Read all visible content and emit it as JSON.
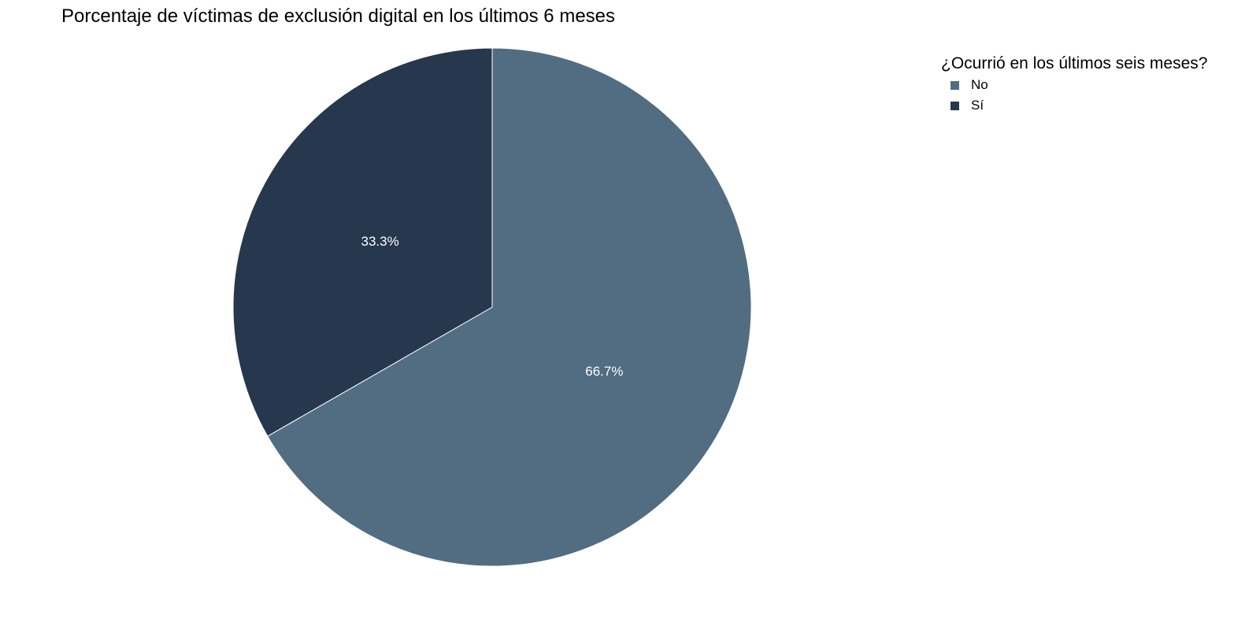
{
  "chart_data": {
    "type": "pie",
    "title": "Porcentaje de víctimas de exclusión digital en los últimos 6 meses",
    "legend_title": "¿Ocurrió en los últimos seis meses?",
    "legend_position": "top-right",
    "slices": [
      {
        "label": "No",
        "value": 66.7,
        "display": "66.7%",
        "color": "#526d82"
      },
      {
        "label": "Sí",
        "value": 33.3,
        "display": "33.3%",
        "color": "#27374d"
      }
    ]
  }
}
